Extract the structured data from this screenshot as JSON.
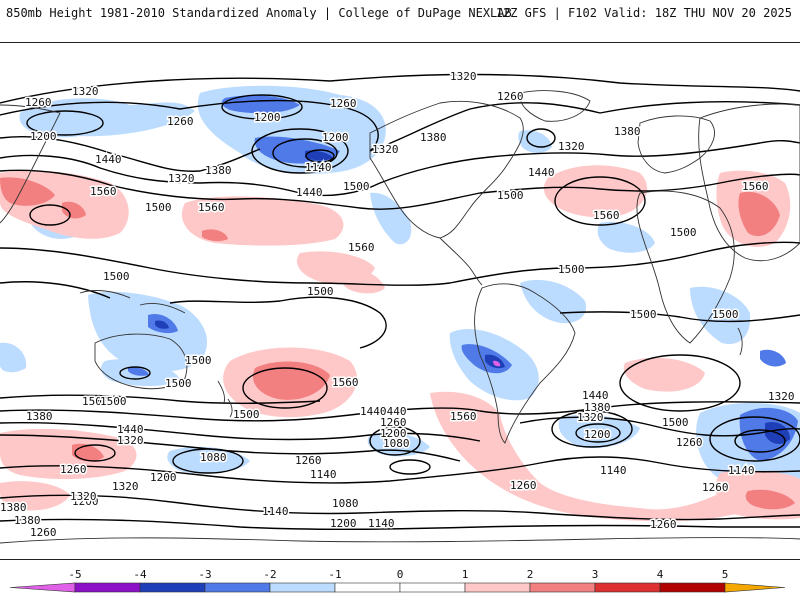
{
  "header": {
    "left_title": "850mb Height 1981-2010 Standardized Anomaly | College of DuPage NEXLAB",
    "right_title": "12Z GFS | F102 Valid: 18Z THU NOV 20 2025"
  },
  "colors": {
    "neg5": "#e060e8",
    "neg4": "#8b10c8",
    "neg3": "#1f3fb8",
    "neg2": "#4f7ae8",
    "neg1": "#bcdcff",
    "pos1": "#ffc8c8",
    "pos2": "#f38080",
    "pos3": "#dd3030",
    "pos4": "#b00000",
    "pos5": "#f5a800",
    "contour": "#000000"
  },
  "colorbar": {
    "ticks": [
      "-5",
      "-4",
      "-3",
      "-2",
      "-1",
      "0",
      "1",
      "2",
      "3",
      "4",
      "5"
    ]
  },
  "contour_labels": [
    "1320",
    "1260",
    "1200",
    "1260",
    "1320",
    "1440",
    "1200",
    "1260",
    "1320",
    "1380",
    "1500",
    "1560",
    "1140",
    "1200",
    "1260",
    "1320",
    "1320",
    "1380",
    "1440",
    "1380",
    "1500",
    "1560",
    "1500",
    "1560",
    "1440",
    "1560",
    "1500",
    "1500",
    "1500",
    "1500",
    "1500",
    "1560",
    "1500",
    "1500",
    "1500",
    "1500",
    "1500",
    "1500",
    "1560",
    "1500",
    "1440",
    "1560",
    "1440",
    "1380",
    "1380",
    "1440",
    "1320",
    "1320",
    "1260",
    "1200",
    "1260",
    "1080",
    "1140",
    "1200",
    "1080",
    "1260",
    "1140",
    "1200",
    "1140",
    "1260",
    "1320",
    "1380",
    "1260",
    "1200",
    "1320",
    "1380",
    "1500",
    "1440",
    "1320",
    "1200",
    "1260",
    "1140",
    "1080",
    "1140",
    "1260",
    "1260"
  ]
}
